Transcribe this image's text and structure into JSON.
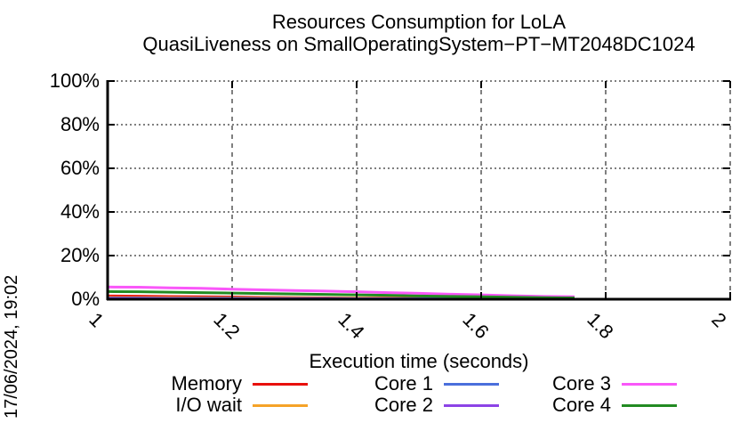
{
  "page": {
    "background": "#ffffff"
  },
  "chart_data": {
    "type": "line",
    "title": "Resources Consumption for LoLA",
    "subtitle": "QuasiLiveness on SmallOperatingSystem−PT−MT2048DC1024",
    "xlabel": "Execution time (seconds)",
    "timestamp": "17/06/2024, 19:02",
    "xlim": [
      1,
      2
    ],
    "ylim": [
      0,
      100
    ],
    "xticks": [
      1,
      1.2,
      1.4,
      1.6,
      1.8,
      2
    ],
    "xtick_labels": [
      "1",
      "1.2",
      "1.4",
      "1.6",
      "1.8",
      "2"
    ],
    "yticks": [
      0,
      20,
      40,
      60,
      80,
      100
    ],
    "ytick_labels": [
      "0%",
      "20%",
      "40%",
      "60%",
      "80%",
      "100%"
    ],
    "grid": true,
    "legend_position": "below-x-axis, 3 columns x 2 rows",
    "axis_color": "#000000",
    "series": [
      {
        "name": "Memory",
        "color": "#e8100c",
        "x": [
          1,
          1.05,
          1.1,
          1.15,
          1.2,
          1.25,
          1.3,
          1.35,
          1.4,
          1.45,
          1.5,
          1.55,
          1.6,
          1.65,
          1.7,
          1.75
        ],
        "y": [
          1.5,
          1.4,
          1.2,
          1.1,
          1.0,
          0.8,
          0.7,
          0.6,
          0.5,
          0.5,
          0.4,
          0.4,
          0.3,
          0.3,
          0.2,
          0.2
        ]
      },
      {
        "name": "I/O wait",
        "color": "#f5a328",
        "x": [
          1,
          1.05,
          1.1,
          1.15,
          1.2,
          1.25,
          1.3,
          1.35,
          1.4,
          1.45,
          1.5,
          1.55,
          1.6,
          1.65,
          1.7,
          1.75
        ],
        "y": [
          0.8,
          0.7,
          0.7,
          0.6,
          0.6,
          0.5,
          0.5,
          0.4,
          0.4,
          0.3,
          0.3,
          0.2,
          0.2,
          0.2,
          0.1,
          0.1
        ]
      },
      {
        "name": "Core 1",
        "color": "#4a6fdc",
        "x": [
          1,
          1.05,
          1.1,
          1.15,
          1.2,
          1.25,
          1.3,
          1.35,
          1.4,
          1.45,
          1.5,
          1.55,
          1.6,
          1.65,
          1.7,
          1.75
        ],
        "y": [
          0.5,
          0.5,
          0.4,
          0.4,
          0.4,
          0.3,
          0.3,
          0.3,
          0.2,
          0.2,
          0.2,
          0.2,
          0.1,
          0.1,
          0.1,
          0.1
        ]
      },
      {
        "name": "Core 2",
        "color": "#8c43e6",
        "x": [
          1,
          1.05,
          1.1,
          1.15,
          1.2,
          1.25,
          1.3,
          1.35,
          1.4,
          1.45,
          1.5,
          1.55,
          1.6,
          1.65,
          1.7,
          1.75
        ],
        "y": [
          0.3,
          0.3,
          0.3,
          0.2,
          0.2,
          0.2,
          0.2,
          0.2,
          0.1,
          0.1,
          0.1,
          0.1,
          0.1,
          0.1,
          0.0,
          0.0
        ]
      },
      {
        "name": "Core 3",
        "color": "#f957f9",
        "x": [
          1,
          1.05,
          1.1,
          1.15,
          1.2,
          1.25,
          1.3,
          1.35,
          1.4,
          1.45,
          1.5,
          1.55,
          1.6,
          1.65,
          1.7,
          1.75
        ],
        "y": [
          5.6,
          5.5,
          5.2,
          5.0,
          4.6,
          4.3,
          4.0,
          3.7,
          3.4,
          3.0,
          2.7,
          2.3,
          2.0,
          1.6,
          1.3,
          1.1
        ]
      },
      {
        "name": "Core 4",
        "color": "#228b22",
        "x": [
          1,
          1.05,
          1.1,
          1.15,
          1.2,
          1.25,
          1.3,
          1.35,
          1.4,
          1.45,
          1.5,
          1.55,
          1.6,
          1.65,
          1.7,
          1.75
        ],
        "y": [
          3.5,
          3.4,
          3.2,
          3.0,
          2.8,
          2.6,
          2.4,
          2.2,
          2.0,
          1.8,
          1.5,
          1.3,
          1.1,
          0.9,
          0.7,
          0.6
        ]
      }
    ]
  }
}
